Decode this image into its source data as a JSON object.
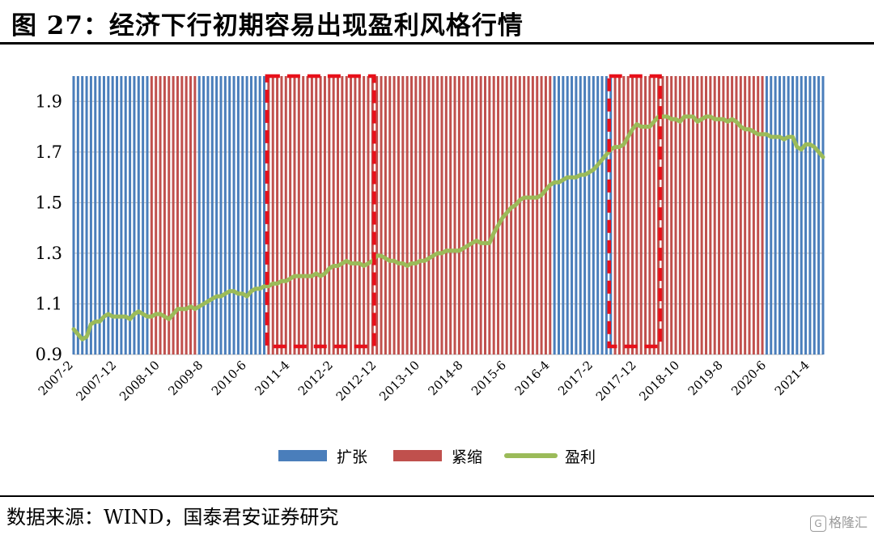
{
  "title": "图 27：经济下行初期容易出现盈利风格行情",
  "source": "数据来源：WIND，国泰君安证券研究",
  "watermark": "格隆汇",
  "colors": {
    "expansion": "#4a7ebb",
    "contraction": "#c0504d",
    "profit": "#9bbb59",
    "highlight": "#e8101a",
    "grid": "#bfbfbf"
  },
  "chart_data": {
    "type": "line",
    "ylim": [
      0.9,
      2.0
    ],
    "yticks": [
      0.9,
      1.1,
      1.3,
      1.5,
      1.7,
      1.9
    ],
    "ytick_labels": [
      "0.9",
      "1.1",
      "1.3",
      "1.5",
      "1.7",
      "1.9"
    ],
    "x_range": [
      "2007-2",
      "2021-7"
    ],
    "xtick_labels": [
      "2007-2",
      "2007-12",
      "2008-10",
      "2009-8",
      "2010-6",
      "2011-4",
      "2012-2",
      "2012-12",
      "2013-10",
      "2014-8",
      "2015-6",
      "2016-4",
      "2017-2",
      "2017-12",
      "2018-10",
      "2019-8",
      "2020-6",
      "2021-4"
    ],
    "regimes": [
      {
        "name": "扩张",
        "start": "2007-2",
        "end": "2008-7"
      },
      {
        "name": "紧缩",
        "start": "2008-8",
        "end": "2009-6"
      },
      {
        "name": "扩张",
        "start": "2009-7",
        "end": "2010-10"
      },
      {
        "name": "紧缩",
        "start": "2010-11",
        "end": "2016-4"
      },
      {
        "name": "扩张",
        "start": "2016-5",
        "end": "2017-6"
      },
      {
        "name": "紧缩",
        "start": "2017-7",
        "end": "2020-5"
      },
      {
        "name": "扩张",
        "start": "2020-6",
        "end": "2021-7"
      }
    ],
    "highlight_windows": [
      {
        "start": "2010-11",
        "end": "2012-11"
      },
      {
        "start": "2017-6",
        "end": "2018-5"
      }
    ],
    "series": [
      {
        "name": "盈利",
        "points": [
          [
            "2007-2",
            1.0
          ],
          [
            "2007-3",
            0.98
          ],
          [
            "2007-4",
            0.96
          ],
          [
            "2007-5",
            0.97
          ],
          [
            "2007-6",
            1.02
          ],
          [
            "2007-7",
            1.03
          ],
          [
            "2007-8",
            1.03
          ],
          [
            "2007-9",
            1.05
          ],
          [
            "2007-10",
            1.06
          ],
          [
            "2007-11",
            1.05
          ],
          [
            "2007-12",
            1.05
          ],
          [
            "2008-1",
            1.05
          ],
          [
            "2008-2",
            1.05
          ],
          [
            "2008-3",
            1.04
          ],
          [
            "2008-4",
            1.06
          ],
          [
            "2008-5",
            1.07
          ],
          [
            "2008-6",
            1.06
          ],
          [
            "2008-7",
            1.05
          ],
          [
            "2008-8",
            1.05
          ],
          [
            "2008-9",
            1.06
          ],
          [
            "2008-10",
            1.06
          ],
          [
            "2008-11",
            1.05
          ],
          [
            "2008-12",
            1.04
          ],
          [
            "2009-1",
            1.06
          ],
          [
            "2009-2",
            1.08
          ],
          [
            "2009-3",
            1.08
          ],
          [
            "2009-4",
            1.08
          ],
          [
            "2009-5",
            1.09
          ],
          [
            "2009-6",
            1.08
          ],
          [
            "2009-7",
            1.09
          ],
          [
            "2009-8",
            1.1
          ],
          [
            "2009-9",
            1.11
          ],
          [
            "2009-10",
            1.12
          ],
          [
            "2009-11",
            1.13
          ],
          [
            "2009-12",
            1.13
          ],
          [
            "2010-1",
            1.14
          ],
          [
            "2010-2",
            1.15
          ],
          [
            "2010-3",
            1.15
          ],
          [
            "2010-4",
            1.14
          ],
          [
            "2010-5",
            1.14
          ],
          [
            "2010-6",
            1.13
          ],
          [
            "2010-7",
            1.15
          ],
          [
            "2010-8",
            1.16
          ],
          [
            "2010-9",
            1.16
          ],
          [
            "2010-10",
            1.17
          ],
          [
            "2010-11",
            1.17
          ],
          [
            "2010-12",
            1.18
          ],
          [
            "2011-1",
            1.18
          ],
          [
            "2011-2",
            1.19
          ],
          [
            "2011-3",
            1.19
          ],
          [
            "2011-4",
            1.2
          ],
          [
            "2011-5",
            1.21
          ],
          [
            "2011-6",
            1.21
          ],
          [
            "2011-7",
            1.21
          ],
          [
            "2011-8",
            1.21
          ],
          [
            "2011-9",
            1.21
          ],
          [
            "2011-10",
            1.22
          ],
          [
            "2011-11",
            1.21
          ],
          [
            "2011-12",
            1.22
          ],
          [
            "2012-1",
            1.24
          ],
          [
            "2012-2",
            1.25
          ],
          [
            "2012-3",
            1.25
          ],
          [
            "2012-4",
            1.26
          ],
          [
            "2012-5",
            1.27
          ],
          [
            "2012-6",
            1.26
          ],
          [
            "2012-7",
            1.26
          ],
          [
            "2012-8",
            1.26
          ],
          [
            "2012-9",
            1.25
          ],
          [
            "2012-10",
            1.26
          ],
          [
            "2012-11",
            1.27
          ],
          [
            "2012-12",
            1.29
          ],
          [
            "2013-1",
            1.29
          ],
          [
            "2013-2",
            1.28
          ],
          [
            "2013-3",
            1.27
          ],
          [
            "2013-4",
            1.27
          ],
          [
            "2013-5",
            1.26
          ],
          [
            "2013-6",
            1.26
          ],
          [
            "2013-7",
            1.25
          ],
          [
            "2013-8",
            1.26
          ],
          [
            "2013-9",
            1.26
          ],
          [
            "2013-10",
            1.27
          ],
          [
            "2013-11",
            1.27
          ],
          [
            "2013-12",
            1.28
          ],
          [
            "2014-1",
            1.29
          ],
          [
            "2014-2",
            1.3
          ],
          [
            "2014-3",
            1.3
          ],
          [
            "2014-4",
            1.31
          ],
          [
            "2014-5",
            1.31
          ],
          [
            "2014-6",
            1.31
          ],
          [
            "2014-7",
            1.31
          ],
          [
            "2014-8",
            1.32
          ],
          [
            "2014-9",
            1.33
          ],
          [
            "2014-10",
            1.34
          ],
          [
            "2014-11",
            1.35
          ],
          [
            "2014-12",
            1.34
          ],
          [
            "2015-1",
            1.34
          ],
          [
            "2015-2",
            1.34
          ],
          [
            "2015-3",
            1.38
          ],
          [
            "2015-4",
            1.41
          ],
          [
            "2015-5",
            1.44
          ],
          [
            "2015-6",
            1.46
          ],
          [
            "2015-7",
            1.48
          ],
          [
            "2015-8",
            1.49
          ],
          [
            "2015-9",
            1.51
          ],
          [
            "2015-10",
            1.52
          ],
          [
            "2015-11",
            1.52
          ],
          [
            "2015-12",
            1.52
          ],
          [
            "2016-1",
            1.52
          ],
          [
            "2016-2",
            1.53
          ],
          [
            "2016-3",
            1.55
          ],
          [
            "2016-4",
            1.57
          ],
          [
            "2016-5",
            1.58
          ],
          [
            "2016-6",
            1.58
          ],
          [
            "2016-7",
            1.59
          ],
          [
            "2016-8",
            1.6
          ],
          [
            "2016-9",
            1.6
          ],
          [
            "2016-10",
            1.6
          ],
          [
            "2016-11",
            1.61
          ],
          [
            "2016-12",
            1.61
          ],
          [
            "2017-1",
            1.62
          ],
          [
            "2017-2",
            1.63
          ],
          [
            "2017-3",
            1.65
          ],
          [
            "2017-4",
            1.67
          ],
          [
            "2017-5",
            1.69
          ],
          [
            "2017-6",
            1.71
          ],
          [
            "2017-7",
            1.72
          ],
          [
            "2017-8",
            1.72
          ],
          [
            "2017-9",
            1.73
          ],
          [
            "2017-10",
            1.76
          ],
          [
            "2017-11",
            1.79
          ],
          [
            "2017-12",
            1.81
          ],
          [
            "2018-1",
            1.8
          ],
          [
            "2018-2",
            1.8
          ],
          [
            "2018-3",
            1.8
          ],
          [
            "2018-4",
            1.82
          ],
          [
            "2018-5",
            1.84
          ],
          [
            "2018-6",
            1.84
          ],
          [
            "2018-7",
            1.84
          ],
          [
            "2018-8",
            1.83
          ],
          [
            "2018-9",
            1.83
          ],
          [
            "2018-10",
            1.82
          ],
          [
            "2018-11",
            1.84
          ],
          [
            "2018-12",
            1.84
          ],
          [
            "2019-1",
            1.84
          ],
          [
            "2019-2",
            1.82
          ],
          [
            "2019-3",
            1.83
          ],
          [
            "2019-4",
            1.84
          ],
          [
            "2019-5",
            1.84
          ],
          [
            "2019-6",
            1.83
          ],
          [
            "2019-7",
            1.83
          ],
          [
            "2019-8",
            1.83
          ],
          [
            "2019-9",
            1.82
          ],
          [
            "2019-10",
            1.83
          ],
          [
            "2019-11",
            1.82
          ],
          [
            "2019-12",
            1.8
          ],
          [
            "2020-1",
            1.79
          ],
          [
            "2020-2",
            1.79
          ],
          [
            "2020-3",
            1.78
          ],
          [
            "2020-4",
            1.77
          ],
          [
            "2020-5",
            1.77
          ],
          [
            "2020-6",
            1.77
          ],
          [
            "2020-7",
            1.76
          ],
          [
            "2020-8",
            1.76
          ],
          [
            "2020-9",
            1.76
          ],
          [
            "2020-10",
            1.75
          ],
          [
            "2020-11",
            1.76
          ],
          [
            "2020-12",
            1.76
          ],
          [
            "2021-1",
            1.72
          ],
          [
            "2021-2",
            1.71
          ],
          [
            "2021-3",
            1.73
          ],
          [
            "2021-4",
            1.73
          ],
          [
            "2021-5",
            1.72
          ],
          [
            "2021-6",
            1.7
          ],
          [
            "2021-7",
            1.68
          ]
        ]
      }
    ],
    "legend": {
      "position": "bottom",
      "items": [
        {
          "label": "扩张",
          "kind": "bar",
          "color": "#4a7ebb"
        },
        {
          "label": "紧缩",
          "kind": "bar",
          "color": "#c0504d"
        },
        {
          "label": "盈利",
          "kind": "line",
          "color": "#9bbb59"
        }
      ]
    }
  }
}
